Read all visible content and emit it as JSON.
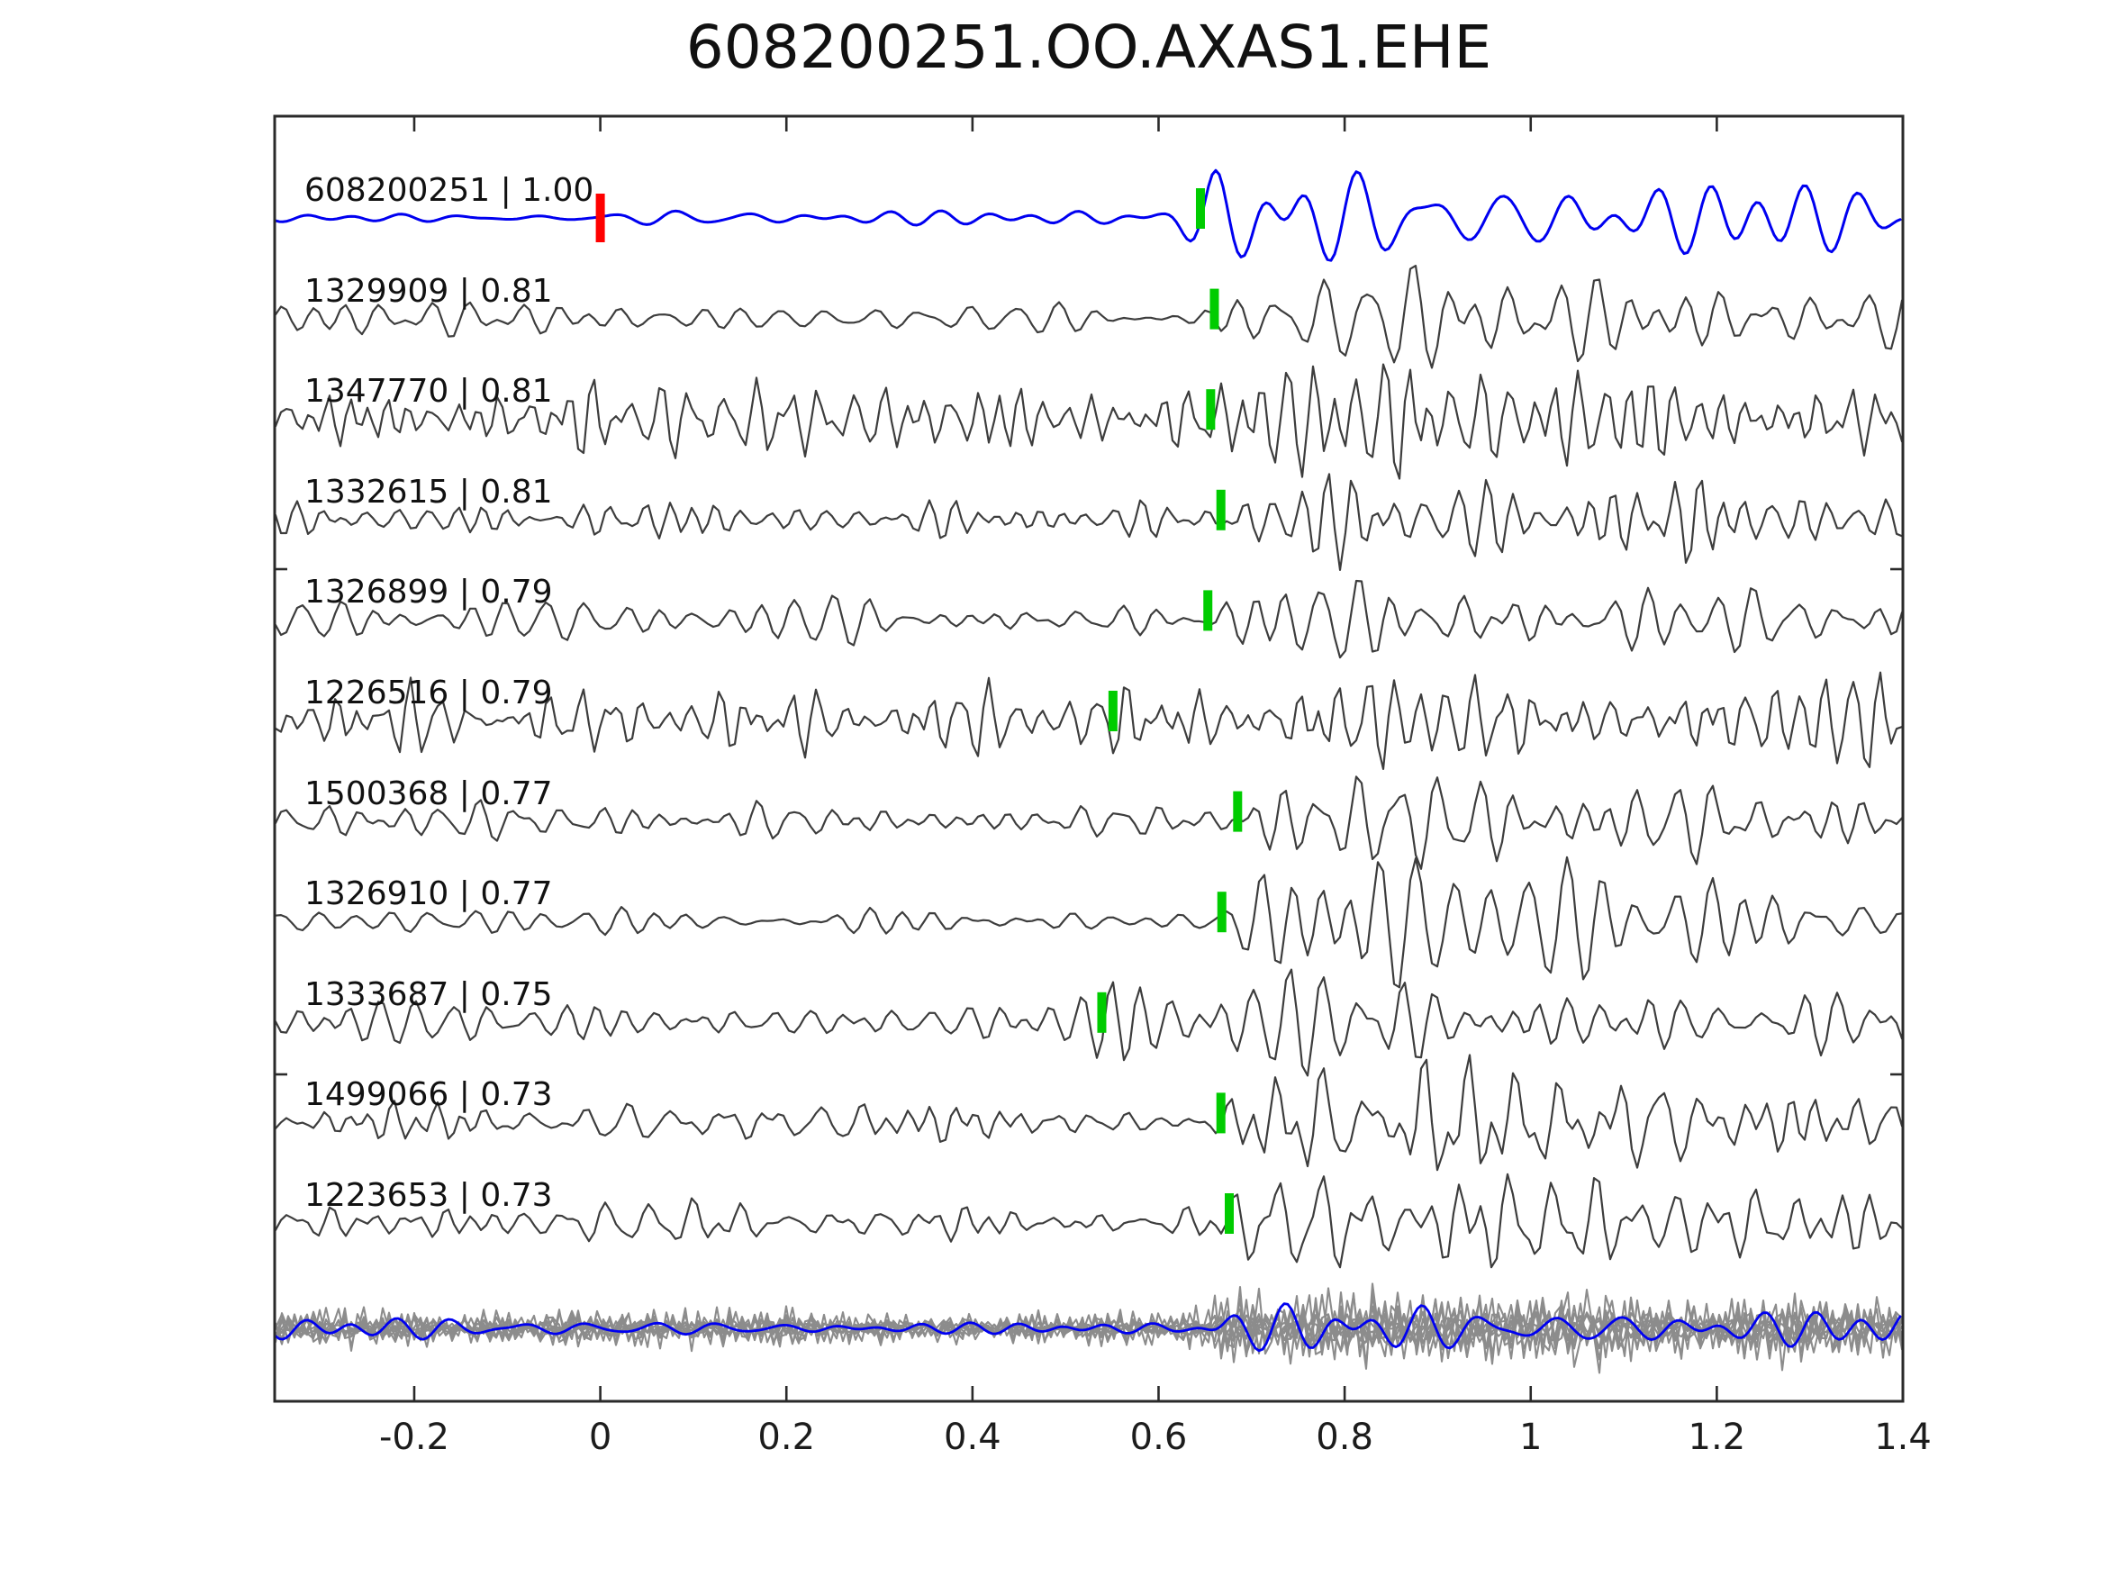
{
  "title": "608200251.OO.AXAS1.EHE",
  "colors": {
    "template_blue": "#0000f0",
    "detection_gray": "#3d3d3d",
    "overlay_gray": "#8c8c8c",
    "marker_green": "#00cc00",
    "marker_red": "#ff0000",
    "axis": "#2a2a2a",
    "text": "#111111"
  },
  "axis": {
    "x_ticks": [
      {
        "label": "-0.2",
        "value": -0.2
      },
      {
        "label": "0",
        "value": 0
      },
      {
        "label": "0.2",
        "value": 0.2
      },
      {
        "label": "0.4",
        "value": 0.4
      },
      {
        "label": "0.6",
        "value": 0.6
      },
      {
        "label": "0.8",
        "value": 0.8
      },
      {
        "label": "1",
        "value": 1
      },
      {
        "label": "1.2",
        "value": 1.2
      },
      {
        "label": "1.4",
        "value": 1.4
      }
    ]
  },
  "chart_data": {
    "type": "line",
    "title": "608200251.OO.AXAS1.EHE",
    "xlabel": "",
    "ylabel": "",
    "xlim": [
      -0.35,
      1.4
    ],
    "grid": false,
    "legend": "none",
    "description": "Seismic template-matching figure: template event 608200251 (blue, top row) compared with ten detected waveforms (dark gray rows) on channel OO.AXAS1.EHE. Each row is labeled 'event id | correlation'. Green bars mark alignment/pick times on each trace; the red bar marks time 0 on the template. The bottom row overlays all gray detections with the blue template.",
    "traces": [
      {
        "id": "608200251",
        "cc": "1.00",
        "label": "608200251 | 1.00",
        "role": "template",
        "color_key": "template_blue",
        "picks": [
          {
            "t": 0.0,
            "color_key": "marker_red"
          },
          {
            "t": 0.645,
            "color_key": "marker_green"
          }
        ]
      },
      {
        "id": "1329909",
        "cc": "0.81",
        "label": "1329909 | 0.81",
        "role": "detection",
        "color_key": "detection_gray",
        "picks": [
          {
            "t": 0.66,
            "color_key": "marker_green"
          }
        ]
      },
      {
        "id": "1347770",
        "cc": "0.81",
        "label": "1347770 | 0.81",
        "role": "detection",
        "color_key": "detection_gray",
        "picks": [
          {
            "t": 0.656,
            "color_key": "marker_green"
          }
        ]
      },
      {
        "id": "1332615",
        "cc": "0.81",
        "label": "1332615 | 0.81",
        "role": "detection",
        "color_key": "detection_gray",
        "picks": [
          {
            "t": 0.667,
            "color_key": "marker_green"
          }
        ]
      },
      {
        "id": "1326899",
        "cc": "0.79",
        "label": "1326899 | 0.79",
        "role": "detection",
        "color_key": "detection_gray",
        "picks": [
          {
            "t": 0.653,
            "color_key": "marker_green"
          }
        ]
      },
      {
        "id": "1226516",
        "cc": "0.79",
        "label": "1226516 | 0.79",
        "role": "detection",
        "color_key": "detection_gray",
        "picks": [
          {
            "t": 0.551,
            "color_key": "marker_green"
          }
        ]
      },
      {
        "id": "1500368",
        "cc": "0.77",
        "label": "1500368 | 0.77",
        "role": "detection",
        "color_key": "detection_gray",
        "picks": [
          {
            "t": 0.685,
            "color_key": "marker_green"
          }
        ]
      },
      {
        "id": "1326910",
        "cc": "0.77",
        "label": "1326910 | 0.77",
        "role": "detection",
        "color_key": "detection_gray",
        "picks": [
          {
            "t": 0.668,
            "color_key": "marker_green"
          }
        ]
      },
      {
        "id": "1333687",
        "cc": "0.75",
        "label": "1333687 | 0.75",
        "role": "detection",
        "color_key": "detection_gray",
        "picks": [
          {
            "t": 0.539,
            "color_key": "marker_green"
          }
        ]
      },
      {
        "id": "1499066",
        "cc": "0.73",
        "label": "1499066 | 0.73",
        "role": "detection",
        "color_key": "detection_gray",
        "picks": [
          {
            "t": 0.667,
            "color_key": "marker_green"
          }
        ]
      },
      {
        "id": "1223653",
        "cc": "0.73",
        "label": "1223653 | 0.73",
        "role": "detection",
        "color_key": "detection_gray",
        "picks": [
          {
            "t": 0.676,
            "color_key": "marker_green"
          }
        ]
      }
    ],
    "overlay_row": {
      "gray_trace_count": 10,
      "color_key": "overlay_gray",
      "template_color_key": "template_blue"
    }
  },
  "waveform_hints": {
    "traces": [
      {
        "seed": 11,
        "pre": 2.5,
        "preEnd": 0.02,
        "mid": 9,
        "burst": 44,
        "onset": 0.6,
        "flo": 1.1,
        "fhi": 2.6,
        "step": 4
      },
      {
        "seed": 23,
        "mid": 12,
        "burst": 38,
        "onset": 0.62,
        "flo": 1.8,
        "fhi": 4.2,
        "step": 6
      },
      {
        "seed": 37,
        "mid": 34,
        "burst": 40,
        "onset": 0.6,
        "flo": 2.2,
        "fhi": 5.2,
        "step": 6
      },
      {
        "seed": 41,
        "mid": 13,
        "burst": 36,
        "onset": 0.63,
        "flo": 2.0,
        "fhi": 4.6,
        "step": 6
      },
      {
        "seed": 59,
        "mid": 15,
        "burst": 38,
        "onset": 0.61,
        "flo": 1.8,
        "fhi": 4.2,
        "step": 6
      },
      {
        "seed": 67,
        "mid": 28,
        "burst": 34,
        "onset": 0.53,
        "flo": 2.2,
        "fhi": 5.2,
        "step": 6
      },
      {
        "seed": 73,
        "mid": 15,
        "burst": 40,
        "onset": 0.66,
        "flo": 1.8,
        "fhi": 4.2,
        "step": 6
      },
      {
        "seed": 83,
        "mid": 11,
        "burst": 52,
        "onset": 0.66,
        "flo": 1.4,
        "fhi": 3.4,
        "step": 6
      },
      {
        "seed": 97,
        "mid": 17,
        "burst": 38,
        "onset": 0.5,
        "flo": 1.8,
        "fhi": 4.2,
        "step": 6
      },
      {
        "seed": 104,
        "mid": 15,
        "burst": 46,
        "onset": 0.65,
        "flo": 1.8,
        "fhi": 4.2,
        "step": 6
      },
      {
        "seed": 117,
        "mid": 15,
        "burst": 44,
        "onset": 0.66,
        "flo": 1.6,
        "fhi": 4.0,
        "step": 6
      }
    ],
    "overlay_gray": {
      "count": 10,
      "seedBase": 200,
      "midMin": 8,
      "midMax": 16,
      "burst": 26,
      "onset": 0.6,
      "flo": 3.0,
      "fhi": 7.5,
      "step": 7
    },
    "overlay_blue": {
      "seed": 11,
      "mid": 7,
      "burst": 22,
      "onset": 0.62,
      "flo": 1.2,
      "fhi": 2.6,
      "step": 4
    }
  }
}
